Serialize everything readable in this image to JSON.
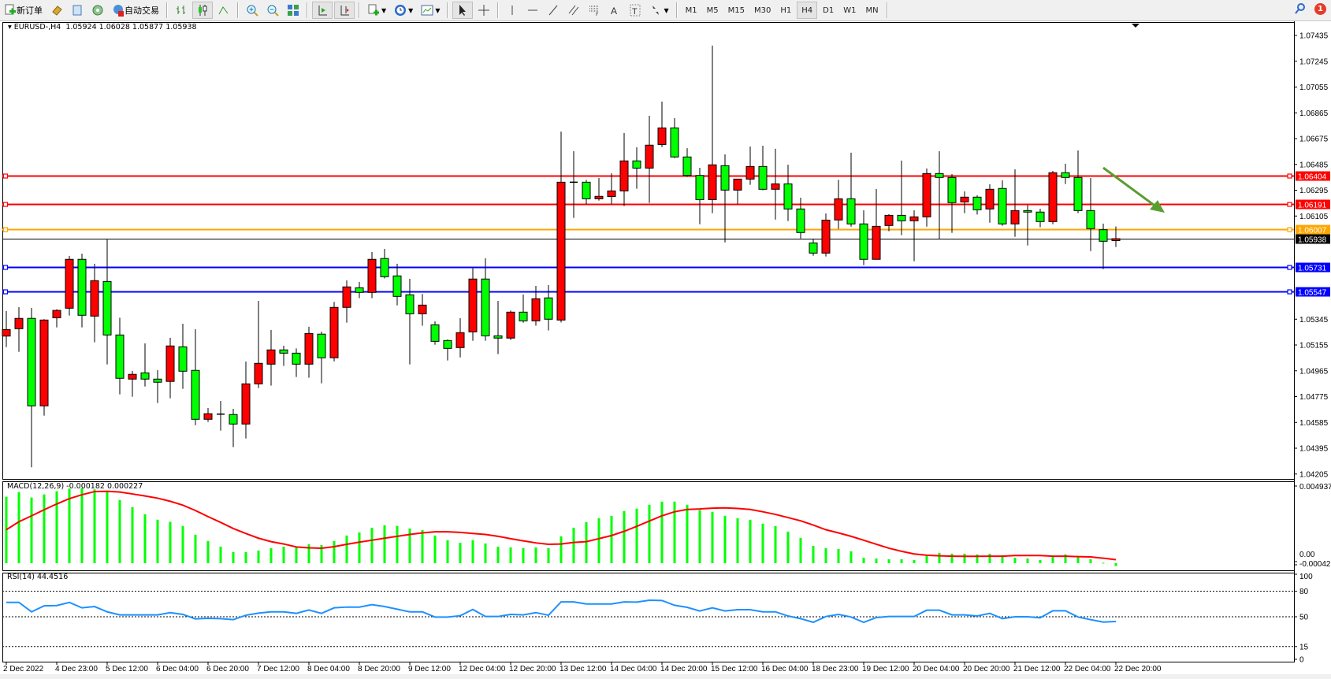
{
  "toolbar": {
    "new_order_label": "新订单",
    "auto_trading_label": "自动交易",
    "timeframes": [
      "M1",
      "M5",
      "M15",
      "M30",
      "H1",
      "H4",
      "D1",
      "W1",
      "MN"
    ],
    "active_timeframe": "H4",
    "notification_count": "1",
    "icons": [
      "new-order-icon",
      "market-watch-icon",
      "data-window-icon",
      "navigator-icon",
      "auto-trading-icon",
      "bar-chart-icon",
      "candlestick-icon",
      "line-chart-icon",
      "zoom-in-icon",
      "zoom-out-icon",
      "tile-windows-icon",
      "autoscroll-icon",
      "chart-shift-icon",
      "indicators-icon",
      "periods-icon",
      "templates-icon",
      "cursor-icon",
      "crosshair-icon",
      "vertical-line-icon",
      "horizontal-line-icon",
      "trendline-icon",
      "equidistant-channel-icon",
      "fibonacci-icon",
      "text-icon",
      "text-label-icon",
      "arrows-icon",
      "search-icon",
      "notification-icon"
    ]
  },
  "chart": {
    "header": "EURUSD-,H4  1.05924 1.06028 1.05877 1.05938",
    "macd_label": "MACD(12,26,9) -0.000182 0.000227",
    "rsi_label": "RSI(14) 44.4516"
  },
  "chart_data": {
    "type": "candlestick",
    "symbol": "EURUSD-",
    "timeframe": "H4",
    "bull_color": "#ff0000",
    "bear_color": "#00ff00",
    "price_axis_ticks": [
      "1.07435",
      "1.07245",
      "1.07055",
      "1.06865",
      "1.06675",
      "1.06485",
      "1.06295",
      "1.06105",
      "1.05345",
      "1.05155",
      "1.04965",
      "1.04775",
      "1.04585",
      "1.04395",
      "1.04205"
    ],
    "time_axis_labels": [
      "2 Dec 2022",
      "4 Dec 23:00",
      "5 Dec 12:00",
      "6 Dec 04:00",
      "6 Dec 20:00",
      "7 Dec 12:00",
      "8 Dec 04:00",
      "8 Dec 20:00",
      "9 Dec 12:00",
      "12 Dec 04:00",
      "12 Dec 20:00",
      "13 Dec 12:00",
      "14 Dec 04:00",
      "14 Dec 20:00",
      "15 Dec 12:00",
      "16 Dec 04:00",
      "18 Dec 23:00",
      "19 Dec 12:00",
      "20 Dec 04:00",
      "20 Dec 20:00",
      "21 Dec 12:00",
      "22 Dec 04:00",
      "22 Dec 20:00"
    ],
    "time_label_every_n_bars": 4,
    "ohlc": [
      [
        1.05221,
        1.05405,
        1.0514,
        1.05269
      ],
      [
        1.05275,
        1.05434,
        1.05105,
        1.05351
      ],
      [
        1.05351,
        1.05428,
        1.04254,
        1.04707
      ],
      [
        1.04707,
        1.05345,
        1.04635,
        1.05339
      ],
      [
        1.05356,
        1.05418,
        1.05285,
        1.0541
      ],
      [
        1.05426,
        1.05811,
        1.05372,
        1.05786
      ],
      [
        1.05786,
        1.05828,
        1.05285,
        1.05374
      ],
      [
        1.05368,
        1.05753,
        1.05175,
        1.05629
      ],
      [
        1.05623,
        1.05931,
        1.05012,
        1.05229
      ],
      [
        1.05229,
        1.05356,
        1.04792,
        1.0491
      ],
      [
        1.04904,
        1.04964,
        1.04774,
        1.04939
      ],
      [
        1.0495,
        1.05167,
        1.0485,
        1.04904
      ],
      [
        1.04904,
        1.0497,
        1.04728,
        1.04881
      ],
      [
        1.04887,
        1.05208,
        1.04763,
        1.05148
      ],
      [
        1.05142,
        1.05312,
        1.04832,
        1.04962
      ],
      [
        1.04968,
        1.05271,
        1.04565,
        1.04608
      ],
      [
        1.04608,
        1.04691,
        1.04589,
        1.04649
      ],
      [
        1.04646,
        1.04743,
        1.04525,
        1.04646
      ],
      [
        1.04643,
        1.04685,
        1.04403,
        1.04573
      ],
      [
        1.04573,
        1.05033,
        1.04467,
        1.04869
      ],
      [
        1.04869,
        1.0548,
        1.04838,
        1.0502
      ],
      [
        1.05014,
        1.05266,
        1.04856,
        1.05119
      ],
      [
        1.05119,
        1.0515,
        1.05001,
        1.05095
      ],
      [
        1.05095,
        1.0513,
        1.04919,
        1.05014
      ],
      [
        1.05014,
        1.05289,
        1.04914,
        1.0524
      ],
      [
        1.05235,
        1.05254,
        1.04873,
        1.05061
      ],
      [
        1.05061,
        1.05473,
        1.05035,
        1.05432
      ],
      [
        1.05432,
        1.05631,
        1.0532,
        1.05583
      ],
      [
        1.05577,
        1.05619,
        1.055,
        1.05542
      ],
      [
        1.05542,
        1.0584,
        1.055,
        1.05786
      ],
      [
        1.05792,
        1.05863,
        1.05645,
        1.05658
      ],
      [
        1.05664,
        1.05753,
        1.05447,
        1.05513
      ],
      [
        1.05525,
        1.05643,
        1.05012,
        1.05385
      ],
      [
        1.05385,
        1.05531,
        1.05297,
        1.05449
      ],
      [
        1.05304,
        1.05329,
        1.05157,
        1.05182
      ],
      [
        1.05188,
        1.05196,
        1.05041,
        1.0513
      ],
      [
        1.05136,
        1.05353,
        1.05064,
        1.05246
      ],
      [
        1.05252,
        1.0572,
        1.05186,
        1.05641
      ],
      [
        1.05641,
        1.05794,
        1.05186,
        1.05223
      ],
      [
        1.05223,
        1.0548,
        1.05088,
        1.05206
      ],
      [
        1.05206,
        1.05409,
        1.05192,
        1.05397
      ],
      [
        1.05397,
        1.05527,
        1.0532,
        1.05333
      ],
      [
        1.05333,
        1.0559,
        1.05297,
        1.05496
      ],
      [
        1.05502,
        1.05596,
        1.05262,
        1.05345
      ],
      [
        1.05339,
        1.06727,
        1.05321,
        1.06354
      ],
      [
        1.06354,
        1.06582,
        1.06091,
        1.06354
      ],
      [
        1.06354,
        1.06371,
        1.06193,
        1.06232
      ],
      [
        1.06232,
        1.06385,
        1.06219,
        1.0625
      ],
      [
        1.06248,
        1.0642,
        1.06193,
        1.0629
      ],
      [
        1.0629,
        1.06716,
        1.06178,
        1.06511
      ],
      [
        1.06511,
        1.06611,
        1.06306,
        1.06458
      ],
      [
        1.06458,
        1.06843,
        1.06201,
        1.06627
      ],
      [
        1.06632,
        1.06948,
        1.06613,
        1.06754
      ],
      [
        1.06754,
        1.06826,
        1.06532,
        1.0654
      ],
      [
        1.0654,
        1.06605,
        1.06393,
        1.06404
      ],
      [
        1.06404,
        1.0646,
        1.06045,
        1.06226
      ],
      [
        1.06226,
        1.0736,
        1.06126,
        1.06482
      ],
      [
        1.06476,
        1.06559,
        1.05911,
        1.06296
      ],
      [
        1.06296,
        1.06377,
        1.06193,
        1.06377
      ],
      [
        1.06377,
        1.06617,
        1.06335,
        1.0647
      ],
      [
        1.0647,
        1.06623,
        1.06294,
        1.06302
      ],
      [
        1.06302,
        1.066,
        1.06079,
        1.06342
      ],
      [
        1.06342,
        1.06483,
        1.06068,
        1.06157
      ],
      [
        1.06157,
        1.0624,
        1.0594,
        1.05983
      ],
      [
        1.05907,
        1.05936,
        1.05812,
        1.05832
      ],
      [
        1.05832,
        1.06124,
        1.05807,
        1.06075
      ],
      [
        1.06076,
        1.06372,
        1.0601,
        1.06232
      ],
      [
        1.06232,
        1.06571,
        1.06027,
        1.06047
      ],
      [
        1.06047,
        1.06147,
        1.05743,
        1.05786
      ],
      [
        1.05786,
        1.06304,
        1.05786,
        1.06029
      ],
      [
        1.06035,
        1.06118,
        1.05993,
        1.0611
      ],
      [
        1.0611,
        1.06513,
        1.05964,
        1.0607
      ],
      [
        1.0607,
        1.06147,
        1.05772,
        1.06099
      ],
      [
        1.06099,
        1.06455,
        1.06027,
        1.06418
      ],
      [
        1.06418,
        1.06582,
        1.05933,
        1.06389
      ],
      [
        1.06389,
        1.06414,
        1.05981,
        1.06203
      ],
      [
        1.06209,
        1.06286,
        1.06126,
        1.06244
      ],
      [
        1.06244,
        1.06257,
        1.06116,
        1.06151
      ],
      [
        1.06157,
        1.06339,
        1.06056,
        1.06302
      ],
      [
        1.06308,
        1.06368,
        1.06033,
        1.06047
      ],
      [
        1.06047,
        1.06449,
        1.05952,
        1.06145
      ],
      [
        1.06145,
        1.06186,
        1.05888,
        1.06134
      ],
      [
        1.06134,
        1.06159,
        1.06022,
        1.06064
      ],
      [
        1.06064,
        1.06437,
        1.06045,
        1.06424
      ],
      [
        1.06424,
        1.0649,
        1.06341,
        1.06389
      ],
      [
        1.06389,
        1.06588,
        1.06126,
        1.06145
      ],
      [
        1.06145,
        1.06385,
        1.05847,
        1.06012
      ],
      [
        1.06004,
        1.06049,
        1.05714,
        1.05919
      ],
      [
        1.05924,
        1.06028,
        1.05877,
        1.05938
      ]
    ],
    "current_price": {
      "value": 1.05938,
      "label": "1.05938",
      "color": "#000000"
    },
    "horizontal_lines": [
      {
        "value": 1.06404,
        "label": "1.06404",
        "color": "#ff0000"
      },
      {
        "value": 1.06191,
        "label": "1.06191",
        "color": "#ff0000"
      },
      {
        "value": 1.06007,
        "label": "1.06007",
        "color": "#ffa500"
      },
      {
        "value": 1.05731,
        "label": "1.05731",
        "color": "#0000ff"
      },
      {
        "value": 1.05547,
        "label": "1.05547",
        "color": "#0000ff"
      }
    ],
    "arrow_annotation_color": "#5a9e32",
    "macd": {
      "axis_labels": [
        "0.004937",
        "0.00",
        "-0.000426"
      ],
      "axis_max": 0.004937,
      "histogram_color": "#00ff00",
      "signal_color": "#ff0000",
      "histogram": [
        0.00425,
        0.00455,
        0.0042,
        0.0044,
        0.0046,
        0.00477,
        0.0048,
        0.00472,
        0.0046,
        0.00404,
        0.00359,
        0.00313,
        0.00278,
        0.00265,
        0.00238,
        0.00182,
        0.00142,
        0.00106,
        0.00071,
        0.00071,
        0.00081,
        0.00096,
        0.00106,
        0.00101,
        0.00121,
        0.00116,
        0.00142,
        0.00177,
        0.00197,
        0.00227,
        0.00243,
        0.00238,
        0.00222,
        0.00212,
        0.00177,
        0.00147,
        0.00131,
        0.00147,
        0.00126,
        0.00106,
        0.00101,
        0.00096,
        0.00101,
        0.00096,
        0.00172,
        0.00227,
        0.00263,
        0.00288,
        0.00303,
        0.00334,
        0.00349,
        0.00374,
        0.00394,
        0.00394,
        0.00374,
        0.0034,
        0.00329,
        0.00303,
        0.00288,
        0.00278,
        0.00253,
        0.00238,
        0.00202,
        0.00162,
        0.00111,
        0.00096,
        0.00091,
        0.00076,
        0.00035,
        0.0003,
        0.00025,
        0.00025,
        0.0002,
        0.00045,
        0.00066,
        0.00061,
        0.00061,
        0.00056,
        0.00061,
        0.00051,
        0.00035,
        0.0003,
        0.0002,
        0.0004,
        0.00056,
        0.0004,
        0.00025,
        3e-05,
        -0.000182
      ],
      "signal": [
        0.00214,
        0.00265,
        0.00303,
        0.00342,
        0.00379,
        0.00413,
        0.00438,
        0.00458,
        0.0046,
        0.00455,
        0.00443,
        0.0043,
        0.00416,
        0.00396,
        0.00371,
        0.00337,
        0.00298,
        0.00261,
        0.00222,
        0.0019,
        0.0016,
        0.00138,
        0.00123,
        0.00104,
        0.00098,
        0.00096,
        0.00106,
        0.00121,
        0.00135,
        0.00147,
        0.0016,
        0.00172,
        0.00184,
        0.00194,
        0.00201,
        0.00201,
        0.00197,
        0.0019,
        0.00184,
        0.00172,
        0.00157,
        0.00143,
        0.0013,
        0.00121,
        0.00123,
        0.00133,
        0.00138,
        0.00157,
        0.00177,
        0.00204,
        0.00236,
        0.0027,
        0.00303,
        0.00329,
        0.00344,
        0.00347,
        0.00352,
        0.00354,
        0.0035,
        0.00344,
        0.00329,
        0.00312,
        0.00292,
        0.00271,
        0.00244,
        0.00214,
        0.00194,
        0.00172,
        0.00147,
        0.00121,
        0.00096,
        0.00076,
        0.00059,
        0.00051,
        0.00047,
        0.00045,
        0.00044,
        0.00044,
        0.00045,
        0.00045,
        0.00049,
        0.00049,
        0.00049,
        0.00045,
        0.00045,
        0.00042,
        0.0004,
        0.00032,
        0.000227
      ]
    },
    "rsi": {
      "axis_labels": [
        "100",
        "80",
        "50",
        "15",
        "0"
      ],
      "levels": [
        80,
        50,
        15
      ],
      "color": "#1e90ff",
      "values": [
        66.9,
        66.9,
        55.8,
        62.9,
        63.2,
        66.9,
        60.5,
        62.0,
        55.8,
        52.2,
        52.2,
        52.2,
        52.2,
        54.9,
        52.8,
        47.5,
        48.2,
        47.8,
        46.6,
        51.8,
        54.3,
        55.8,
        55.8,
        54.0,
        58.0,
        54.0,
        60.5,
        61.4,
        61.4,
        64.2,
        62.0,
        58.9,
        55.8,
        55.8,
        49.7,
        49.7,
        51.2,
        58.6,
        50.3,
        50.3,
        52.8,
        52.2,
        54.9,
        51.8,
        67.5,
        67.5,
        65.1,
        65.1,
        65.1,
        67.5,
        67.2,
        69.4,
        69.1,
        63.5,
        61.1,
        56.8,
        60.5,
        56.8,
        58.3,
        58.3,
        55.8,
        55.8,
        50.9,
        47.8,
        43.5,
        50.3,
        52.8,
        49.7,
        43.5,
        49.1,
        50.3,
        50.3,
        50.3,
        57.7,
        57.7,
        52.2,
        52.2,
        50.9,
        54.0,
        47.8,
        50.0,
        50.0,
        48.8,
        57.1,
        57.1,
        49.7,
        46.6,
        43.8,
        44.45
      ]
    }
  }
}
